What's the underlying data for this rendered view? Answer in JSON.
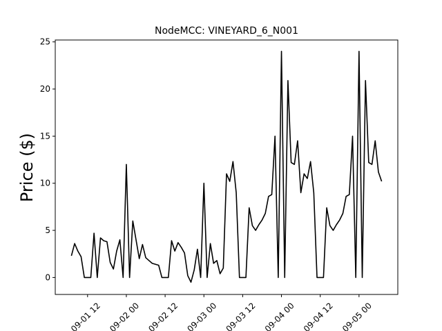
{
  "chart_data": {
    "type": "line",
    "title": "NodeMCC: VINEYARD_6_N001",
    "ylabel": "Price ($)",
    "x": [
      "09-01 07",
      "09-01 08",
      "09-01 09",
      "09-01 10",
      "09-01 11",
      "09-01 12",
      "09-01 13",
      "09-01 14",
      "09-01 15",
      "09-01 16",
      "09-01 17",
      "09-01 18",
      "09-01 19",
      "09-01 20",
      "09-01 21",
      "09-01 22",
      "09-01 23",
      "09-02 00",
      "09-02 01",
      "09-02 02",
      "09-02 03",
      "09-02 04",
      "09-02 05",
      "09-02 06",
      "09-02 07",
      "09-02 08",
      "09-02 09",
      "09-02 10",
      "09-02 11",
      "09-02 12",
      "09-02 13",
      "09-02 14",
      "09-02 15",
      "09-02 16",
      "09-02 17",
      "09-02 18",
      "09-02 19",
      "09-02 20",
      "09-02 21",
      "09-02 22",
      "09-02 23",
      "09-03 00",
      "09-03 01",
      "09-03 02",
      "09-03 03",
      "09-03 04",
      "09-03 05",
      "09-03 06",
      "09-03 07",
      "09-03 08",
      "09-03 09",
      "09-03 10",
      "09-03 11",
      "09-03 12",
      "09-03 13",
      "09-03 14",
      "09-03 15",
      "09-03 16",
      "09-03 17",
      "09-03 18",
      "09-03 19",
      "09-03 20",
      "09-03 21",
      "09-03 22",
      "09-03 23",
      "09-04 00",
      "09-04 01",
      "09-04 02",
      "09-04 03",
      "09-04 04",
      "09-04 05",
      "09-04 06",
      "09-04 07",
      "09-04 08",
      "09-04 09",
      "09-04 10",
      "09-04 11",
      "09-04 12",
      "09-04 13",
      "09-04 14",
      "09-04 15",
      "09-04 16",
      "09-04 17",
      "09-04 18",
      "09-04 19",
      "09-04 20",
      "09-04 21",
      "09-04 22",
      "09-04 23",
      "09-05 00",
      "09-05 01",
      "09-05 02",
      "09-05 03",
      "09-05 04",
      "09-05 05",
      "09-05 06",
      "09-05 07"
    ],
    "series": [
      {
        "color": "#000000",
        "values": [
          2.3,
          3.6,
          2.8,
          2.2,
          0,
          0,
          0,
          4.7,
          0,
          4.2,
          3.9,
          3.8,
          1.6,
          0.9,
          2.8,
          4.0,
          0,
          12,
          0,
          6.0,
          4.0,
          2.0,
          3.5,
          2.1,
          1.8,
          1.5,
          1.4,
          1.3,
          0,
          0,
          0,
          3.9,
          2.8,
          3.7,
          3.2,
          2.6,
          0.2,
          -0.5,
          0.8,
          3.0,
          0,
          10,
          0,
          3.6,
          1.5,
          1.8,
          0.4,
          1.0,
          11.0,
          10.2,
          12.3,
          9.0,
          0,
          0,
          0,
          7.4,
          5.5,
          5.0,
          5.6,
          6.1,
          6.8,
          8.6,
          8.8,
          15.0,
          0,
          24,
          0,
          20.9,
          12.2,
          12.0,
          14.5,
          9.0,
          11.0,
          10.5,
          12.3,
          9.0,
          0,
          0,
          0,
          7.4,
          5.5,
          5.0,
          5.6,
          6.1,
          6.8,
          8.6,
          8.8,
          15.0,
          0,
          24,
          0,
          20.9,
          12.2,
          12.0,
          14.5,
          11.2,
          10.2
        ]
      }
    ],
    "xlim": [
      "09-01 02",
      "09-05 12"
    ],
    "xticks": [
      "09-01 12",
      "09-02 00",
      "09-02 12",
      "09-03 00",
      "09-03 12",
      "09-04 00",
      "09-04 12",
      "09-05 00"
    ],
    "ylim": [
      -1.8,
      25.2
    ],
    "yticks": [
      0,
      5,
      10,
      15,
      20,
      25
    ]
  }
}
